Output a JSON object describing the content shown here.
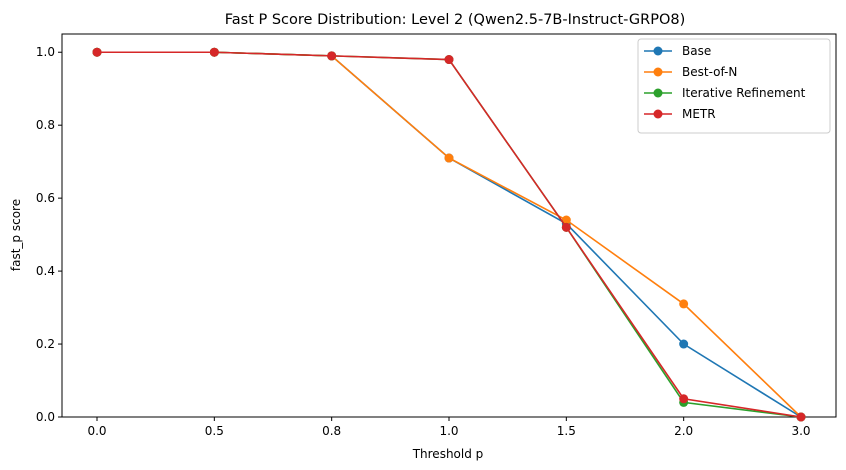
{
  "chart_data": {
    "type": "line",
    "title": "Fast P Score Distribution: Level 2 (Qwen2.5-7B-Instruct-GRPO8)",
    "xlabel": "Threshold p",
    "ylabel": "fast_p score",
    "categories": [
      "0.0",
      "0.5",
      "0.8",
      "1.0",
      "1.5",
      "2.0",
      "3.0"
    ],
    "ylim": [
      0,
      1.05
    ],
    "yticks": [
      "0.0",
      "0.2",
      "0.4",
      "0.6",
      "0.8",
      "1.0"
    ],
    "grid": false,
    "legend_position": "top-right",
    "series": [
      {
        "name": "Base",
        "color": "#1f77b4",
        "values": [
          1.0,
          1.0,
          0.99,
          0.71,
          0.53,
          0.2,
          0.0
        ]
      },
      {
        "name": "Best-of-N",
        "color": "#ff7f0e",
        "values": [
          1.0,
          1.0,
          0.99,
          0.71,
          0.54,
          0.31,
          0.0
        ]
      },
      {
        "name": "Iterative Refinement",
        "color": "#2ca02c",
        "values": [
          1.0,
          1.0,
          0.99,
          0.98,
          0.52,
          0.04,
          0.0
        ]
      },
      {
        "name": "METR",
        "color": "#d62728",
        "values": [
          1.0,
          1.0,
          0.99,
          0.98,
          0.52,
          0.05,
          0.0
        ]
      }
    ]
  }
}
